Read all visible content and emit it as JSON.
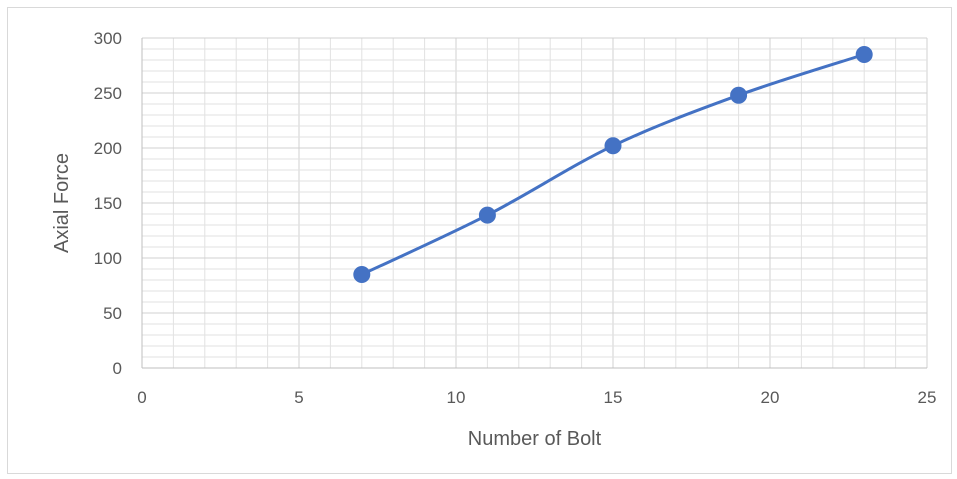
{
  "chart_data": {
    "type": "scatter",
    "title": "",
    "xlabel": "Number of Bolt",
    "ylabel": "Axial Force",
    "xlim": [
      0,
      25
    ],
    "ylim": [
      0,
      300
    ],
    "x_ticks": [
      "0",
      "5",
      "10",
      "15",
      "20",
      "25"
    ],
    "y_ticks": [
      "0",
      "50",
      "100",
      "150",
      "200",
      "250",
      "300"
    ],
    "x_major_step": 5,
    "x_minor_step": 1,
    "y_major_step": 50,
    "y_minor_step": 10,
    "grid": true,
    "smooth_line": true,
    "legend": "none",
    "series": [
      {
        "x": [
          7,
          11,
          15,
          19,
          23
        ],
        "y": [
          85,
          139,
          202,
          248,
          285
        ],
        "color": "#4472c4",
        "marker": "circle"
      }
    ]
  }
}
